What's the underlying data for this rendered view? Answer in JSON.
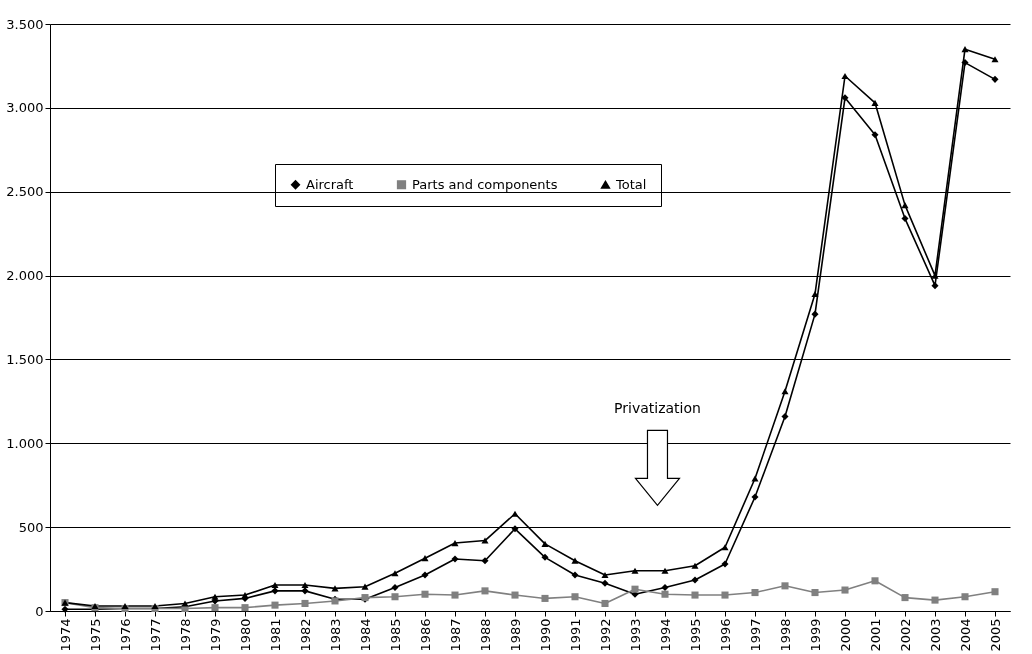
{
  "chart_data": {
    "type": "line",
    "categories": [
      "1974",
      "1975",
      "1976",
      "1977",
      "1978",
      "1979",
      "1980",
      "1981",
      "1982",
      "1983",
      "1984",
      "1985",
      "1986",
      "1987",
      "1988",
      "1989",
      "1990",
      "1991",
      "1992",
      "1993",
      "1994",
      "1995",
      "1996",
      "1997",
      "1998",
      "1999",
      "2000",
      "2001",
      "2002",
      "2003",
      "2004",
      "2005"
    ],
    "series": [
      {
        "name": "Aircraft",
        "color": "#000000",
        "marker": "diamond",
        "values": [
          10,
          10,
          15,
          15,
          25,
          60,
          75,
          120,
          120,
          70,
          70,
          140,
          215,
          310,
          300,
          490,
          320,
          215,
          165,
          100,
          140,
          185,
          280,
          680,
          1160,
          1770,
          3060,
          2840,
          2340,
          1940,
          3270,
          3170
        ]
      },
      {
        "name": "Parts and components",
        "color": "#808080",
        "marker": "square",
        "values": [
          50,
          20,
          15,
          15,
          15,
          20,
          20,
          35,
          45,
          60,
          80,
          85,
          100,
          95,
          120,
          95,
          75,
          85,
          45,
          130,
          100,
          95,
          95,
          110,
          150,
          110,
          125,
          180,
          80,
          65,
          85,
          115
        ]
      },
      {
        "name": "Total",
        "color": "#000000",
        "marker": "triangle",
        "values": [
          50,
          30,
          30,
          30,
          45,
          85,
          95,
          155,
          155,
          135,
          145,
          225,
          315,
          405,
          420,
          580,
          400,
          300,
          215,
          240,
          240,
          270,
          380,
          790,
          1310,
          1890,
          3190,
          3030,
          2420,
          2000,
          3350,
          3290
        ]
      }
    ],
    "ylim": [
      0,
      3500
    ],
    "yticks": [
      0,
      500,
      {
        "value": 1000,
        "label": "1.000"
      },
      {
        "value": 1500,
        "label": "1.500"
      },
      {
        "value": 2000,
        "label": "2.000"
      },
      {
        "value": 2500,
        "label": "2.500"
      },
      {
        "value": 3000,
        "label": "3.000"
      },
      {
        "value": 3500,
        "label": "3.500"
      }
    ],
    "grid": "y",
    "legend": "top left",
    "line_style": "solid",
    "annotations": [
      "Privatization"
    ]
  }
}
